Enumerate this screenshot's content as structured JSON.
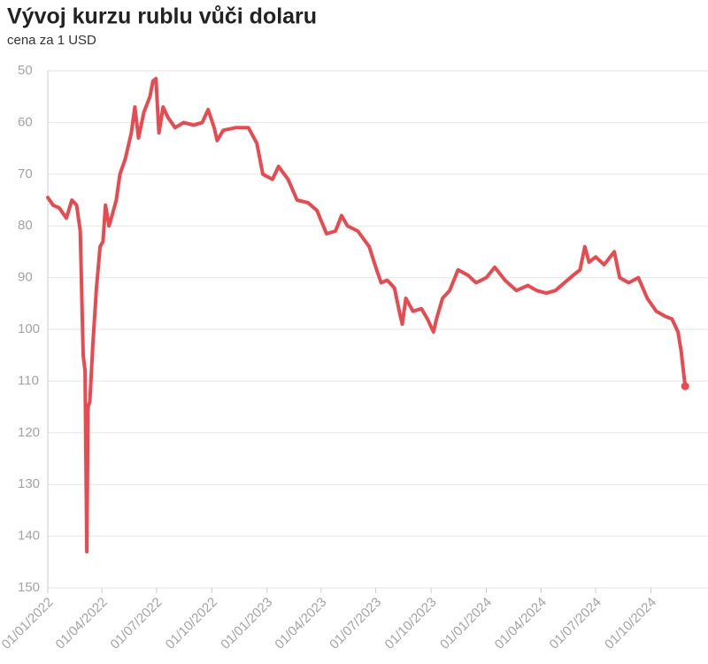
{
  "chart_data": {
    "type": "line",
    "title": "Vývoj kurzu rublu vůči dolaru",
    "subtitle": "cena za 1 USD",
    "color": "#ea4a4f",
    "grid": true,
    "y_inverted": true,
    "ylim": [
      150,
      50
    ],
    "yticks": [
      50,
      60,
      70,
      80,
      90,
      100,
      110,
      120,
      130,
      140,
      150
    ],
    "xlim": [
      "2022-01-01",
      "2025-01-04"
    ],
    "xticks": [
      {
        "value": "2022-01-01",
        "label": "01/01/2022"
      },
      {
        "value": "2022-04-01",
        "label": "01/04/2022"
      },
      {
        "value": "2022-07-01",
        "label": "01/07/2022"
      },
      {
        "value": "2022-10-01",
        "label": "01/10/2022"
      },
      {
        "value": "2023-01-01",
        "label": "01/01/2023"
      },
      {
        "value": "2023-04-01",
        "label": "01/04/2023"
      },
      {
        "value": "2023-07-01",
        "label": "01/07/2023"
      },
      {
        "value": "2023-10-01",
        "label": "01/10/2023"
      },
      {
        "value": "2024-01-01",
        "label": "01/01/2024"
      },
      {
        "value": "2024-04-01",
        "label": "01/04/2024"
      },
      {
        "value": "2024-07-01",
        "label": "01/07/2024"
      },
      {
        "value": "2024-10-01",
        "label": "01/10/2024"
      }
    ],
    "x": [
      "2022-01-01",
      "2022-01-10",
      "2022-01-20",
      "2022-02-01",
      "2022-02-10",
      "2022-02-18",
      "2022-02-24",
      "2022-03-01",
      "2022-03-04",
      "2022-03-07",
      "2022-03-09",
      "2022-03-12",
      "2022-03-17",
      "2022-03-23",
      "2022-03-29",
      "2022-04-03",
      "2022-04-07",
      "2022-04-13",
      "2022-04-18",
      "2022-04-25",
      "2022-05-01",
      "2022-05-10",
      "2022-05-20",
      "2022-05-26",
      "2022-06-01",
      "2022-06-10",
      "2022-06-20",
      "2022-06-25",
      "2022-06-30",
      "2022-07-05",
      "2022-07-12",
      "2022-07-20",
      "2022-08-01",
      "2022-08-15",
      "2022-09-01",
      "2022-09-15",
      "2022-09-25",
      "2022-10-05",
      "2022-10-10",
      "2022-10-20",
      "2022-11-10",
      "2022-12-01",
      "2022-12-15",
      "2022-12-25",
      "2023-01-10",
      "2023-01-20",
      "2023-02-05",
      "2023-02-20",
      "2023-03-10",
      "2023-03-25",
      "2023-04-10",
      "2023-04-25",
      "2023-05-05",
      "2023-05-15",
      "2023-06-01",
      "2023-06-20",
      "2023-07-01",
      "2023-07-10",
      "2023-07-20",
      "2023-08-01",
      "2023-08-10",
      "2023-08-14",
      "2023-08-20",
      "2023-09-01",
      "2023-09-15",
      "2023-09-25",
      "2023-10-05",
      "2023-10-10",
      "2023-10-20",
      "2023-11-01",
      "2023-11-15",
      "2023-12-01",
      "2023-12-15",
      "2024-01-01",
      "2024-01-15",
      "2024-02-01",
      "2024-02-20",
      "2024-03-10",
      "2024-03-25",
      "2024-04-10",
      "2024-04-25",
      "2024-05-10",
      "2024-05-25",
      "2024-06-05",
      "2024-06-13",
      "2024-06-20",
      "2024-07-01",
      "2024-07-15",
      "2024-08-01",
      "2024-08-10",
      "2024-08-25",
      "2024-09-10",
      "2024-09-25",
      "2024-10-10",
      "2024-10-25",
      "2024-11-05",
      "2024-11-15",
      "2024-11-20",
      "2024-11-27"
    ],
    "values": [
      74.5,
      76,
      76.5,
      78.5,
      75,
      76,
      81,
      105,
      108,
      143,
      115,
      114,
      103,
      92,
      84,
      83,
      76,
      80,
      78,
      75,
      70,
      67,
      62,
      57,
      63,
      58,
      55,
      52,
      51.5,
      62,
      57,
      59,
      61,
      60,
      60.5,
      60,
      57.5,
      61,
      63.5,
      61.5,
      61,
      61,
      64,
      70,
      71,
      68.5,
      71,
      75,
      75.5,
      77,
      81.5,
      81,
      78,
      80,
      81,
      84,
      88,
      91,
      90.5,
      92,
      97,
      99,
      94,
      96.5,
      96,
      98,
      100.5,
      98,
      94,
      92.5,
      88.5,
      89.5,
      91,
      90,
      88,
      90.5,
      92.5,
      91.5,
      92.5,
      93,
      92.5,
      91,
      89.5,
      88.5,
      84,
      87,
      86,
      87.5,
      85,
      90,
      91,
      90,
      94,
      96.5,
      97.5,
      98,
      100.5,
      104,
      111
    ]
  }
}
